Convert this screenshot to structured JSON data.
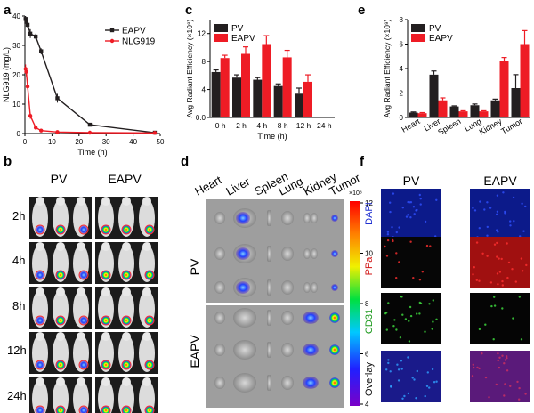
{
  "panel_labels": [
    "a",
    "b",
    "c",
    "d",
    "e",
    "f"
  ],
  "colors": {
    "pv": "#231f20",
    "eapv": "#ee1c25",
    "dapi": "#1e2fd0",
    "ppa": "#d01414",
    "cd31": "#2fc12f"
  },
  "panel_b": {
    "columns": [
      "PV",
      "EAPV"
    ],
    "rows": [
      "2h",
      "4h",
      "8h",
      "12h",
      "24h"
    ]
  },
  "panel_d": {
    "organs": [
      "Heart",
      "Liver",
      "Spleen",
      "Lung",
      "Kidney",
      "Tumor"
    ],
    "groups": [
      "PV",
      "EAPV"
    ],
    "colorbar": {
      "multiplier": "×10⁸",
      "ticks": [
        "12",
        "10",
        "8",
        "6",
        "4"
      ]
    }
  },
  "panel_f": {
    "columns": [
      "PV",
      "EAPV"
    ],
    "rows": [
      "DAPI",
      "PPa",
      "CD31",
      "Overlay"
    ]
  },
  "chart_data": [
    {
      "panel": "a",
      "type": "line",
      "xlabel": "Time (h)",
      "ylabel": "NLG919 (mg/L)",
      "xlim": [
        0,
        50
      ],
      "ylim": [
        0,
        40
      ],
      "xticks": [
        "0",
        "10",
        "20",
        "30",
        "40",
        "50"
      ],
      "yticks": [
        "0",
        "10",
        "20",
        "30",
        "40"
      ],
      "legend": "top-right",
      "series": [
        {
          "name": "EAPV",
          "color": "#231f20",
          "marker": "square",
          "x": [
            0.25,
            0.5,
            1,
            2,
            4,
            6,
            12,
            24,
            48
          ],
          "y": [
            39,
            38,
            37,
            34,
            33,
            28,
            12,
            3,
            0.3
          ],
          "err": [
            1,
            1,
            1,
            1.5,
            1,
            1,
            1.5,
            0.5,
            0.2
          ]
        },
        {
          "name": "NLG919",
          "color": "#ee1c25",
          "marker": "circle",
          "x": [
            0.25,
            0.5,
            1,
            2,
            4,
            6,
            12,
            24,
            48
          ],
          "y": [
            22,
            21,
            16,
            6,
            2,
            1,
            0.5,
            0.3,
            0.2
          ],
          "err": [
            1.5,
            1.5,
            1,
            1,
            0.5,
            0.3,
            0.2,
            0.1,
            0.1
          ]
        }
      ]
    },
    {
      "panel": "c",
      "type": "bar",
      "xlabel": "Time (h)",
      "ylabel": "Avg Radiant Efficiency (×10⁸)",
      "ylim": [
        0,
        14
      ],
      "yticks": [
        "0.0",
        "4",
        "8",
        "12"
      ],
      "categories": [
        "0 h",
        "2 h",
        "4 h",
        "8 h",
        "12 h",
        "24 h"
      ],
      "legend": "top-left",
      "series": [
        {
          "name": "PV",
          "color": "#231f20",
          "values": [
            6.5,
            5.7,
            5.4,
            4.5,
            3.4,
            null
          ],
          "err": [
            0.3,
            0.4,
            0.3,
            0.3,
            0.8,
            null
          ]
        },
        {
          "name": "EAPV",
          "color": "#ee1c25",
          "values": [
            8.5,
            9.1,
            10.5,
            8.6,
            5.1,
            null
          ],
          "err": [
            0.4,
            1.0,
            1.2,
            1.0,
            1.0,
            null
          ]
        }
      ]
    },
    {
      "panel": "e",
      "type": "bar",
      "ylabel": "Avg Radiant Efficiency (×10⁹)",
      "ylim": [
        0,
        8
      ],
      "yticks": [
        "0",
        "2",
        "4",
        "6",
        "8"
      ],
      "categories": [
        "Heart",
        "Liver",
        "Spleen",
        "Lung",
        "Kidney",
        "Tumor"
      ],
      "legend": "top-left",
      "series": [
        {
          "name": "PV",
          "color": "#231f20",
          "values": [
            0.4,
            3.5,
            0.9,
            1.0,
            1.4,
            2.4
          ],
          "err": [
            0.05,
            0.3,
            0.05,
            0.1,
            0.1,
            1.1
          ]
        },
        {
          "name": "EAPV",
          "color": "#ee1c25",
          "values": [
            0.35,
            1.4,
            0.5,
            0.5,
            4.6,
            6.0
          ],
          "err": [
            0.05,
            0.2,
            0.05,
            0.05,
            0.3,
            1.1
          ]
        }
      ]
    }
  ]
}
